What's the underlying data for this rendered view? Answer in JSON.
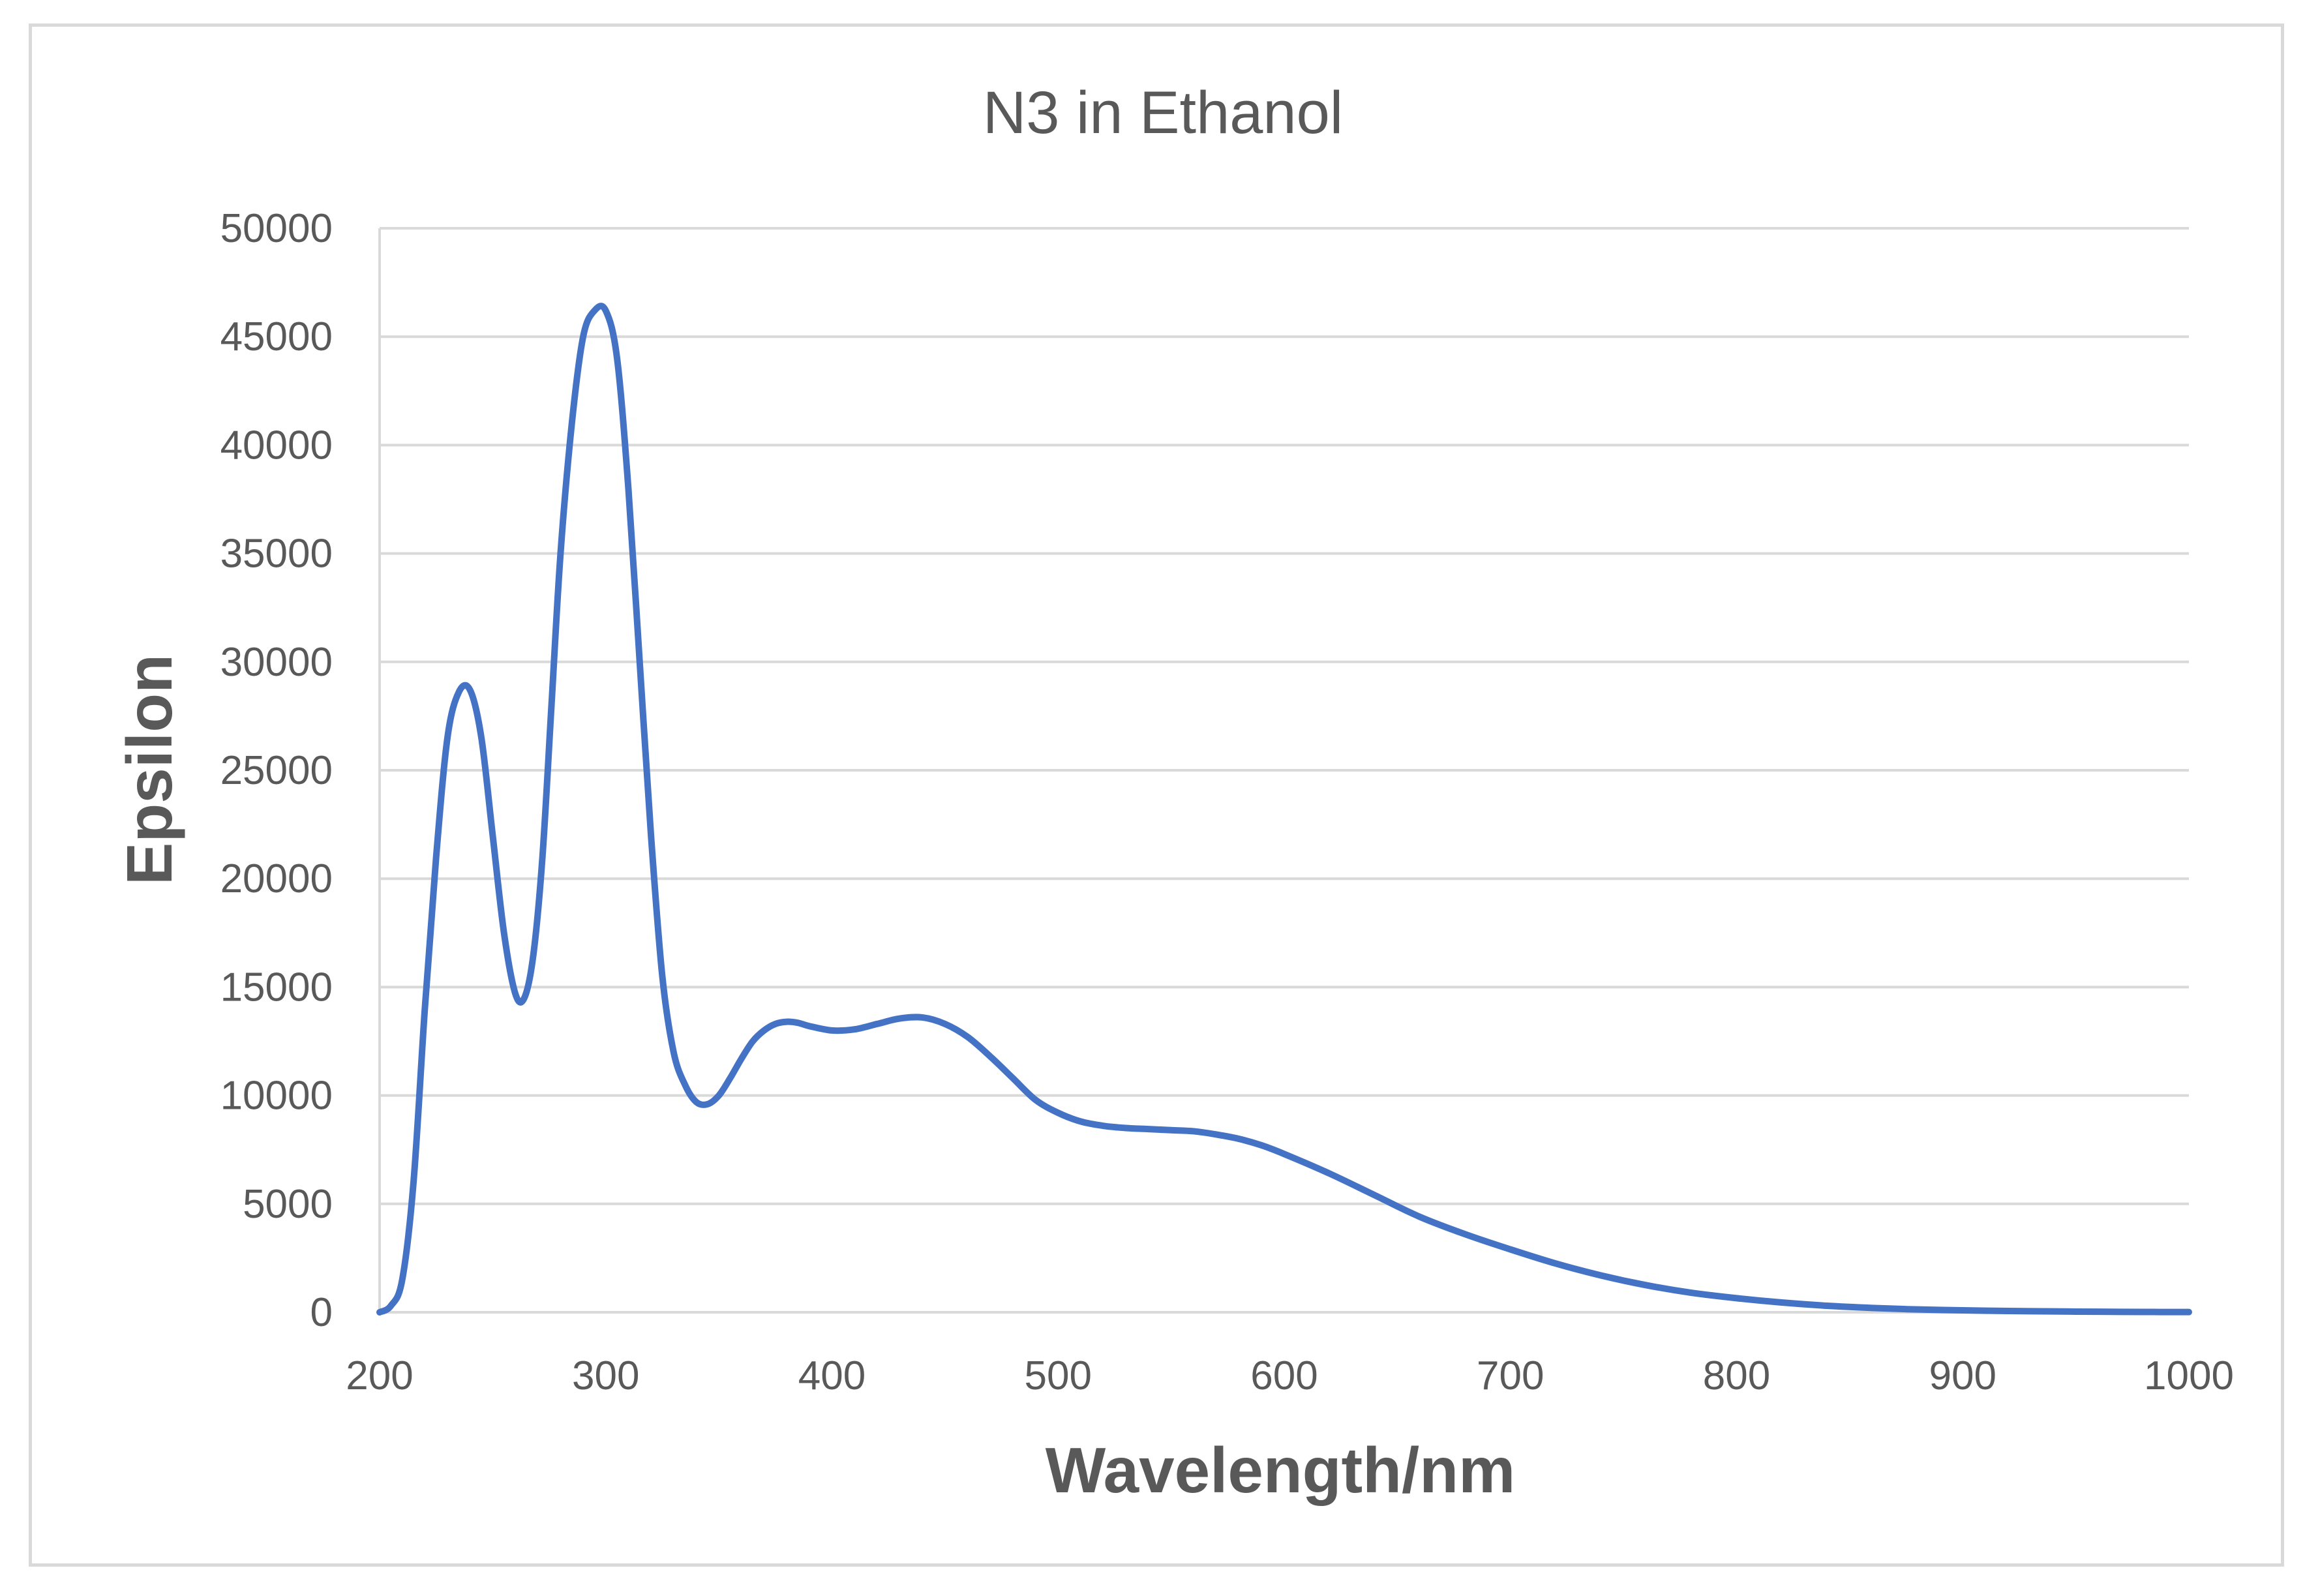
{
  "chart_data": {
    "type": "line",
    "title": "N3 in Ethanol",
    "xlabel": "Wavelength/nm",
    "ylabel": "Epsilon",
    "xlim": [
      200,
      1000
    ],
    "ylim": [
      0,
      50000
    ],
    "xticks": [
      200,
      300,
      400,
      500,
      600,
      700,
      800,
      900,
      1000
    ],
    "yticks": [
      0,
      5000,
      10000,
      15000,
      20000,
      25000,
      30000,
      35000,
      40000,
      45000,
      50000
    ],
    "grid": true,
    "legend": "none",
    "series_color": "#4472c4",
    "grid_color": "#d9d9d9",
    "text_color": "#595959",
    "series": [
      {
        "name": "Epsilon",
        "x": [
          200,
          205,
          210,
          215,
          220,
          225,
          230,
          235,
          240,
          245,
          250,
          255,
          260,
          264,
          268,
          272,
          276,
          280,
          285,
          290,
          295,
          300,
          305,
          310,
          315,
          320,
          325,
          330,
          335,
          340,
          345,
          350,
          355,
          360,
          365,
          370,
          375,
          380,
          385,
          390,
          400,
          410,
          420,
          430,
          440,
          450,
          460,
          470,
          480,
          490,
          500,
          510,
          520,
          530,
          540,
          550,
          560,
          570,
          580,
          590,
          600,
          620,
          640,
          660,
          680,
          700,
          720,
          740,
          760,
          780,
          800,
          820,
          840,
          860,
          880,
          900,
          920,
          940,
          960,
          980,
          1000
        ],
        "values": [
          0,
          300,
          1500,
          6000,
          14000,
          21000,
          26500,
          28600,
          28700,
          26500,
          22000,
          17500,
          14700,
          14500,
          16500,
          21000,
          28000,
          35000,
          41000,
          45000,
          46200,
          46200,
          44000,
          38000,
          30000,
          22000,
          15500,
          12000,
          10500,
          9700,
          9600,
          10000,
          10800,
          11700,
          12500,
          13000,
          13300,
          13400,
          13350,
          13200,
          13000,
          13050,
          13300,
          13550,
          13600,
          13300,
          12700,
          11800,
          10800,
          9800,
          9200,
          8800,
          8600,
          8500,
          8450,
          8400,
          8350,
          8200,
          8000,
          7700,
          7300,
          6400,
          5400,
          4400,
          3600,
          2900,
          2250,
          1700,
          1250,
          900,
          650,
          450,
          300,
          200,
          130,
          90,
          60,
          40,
          25,
          15,
          10
        ]
      }
    ]
  }
}
